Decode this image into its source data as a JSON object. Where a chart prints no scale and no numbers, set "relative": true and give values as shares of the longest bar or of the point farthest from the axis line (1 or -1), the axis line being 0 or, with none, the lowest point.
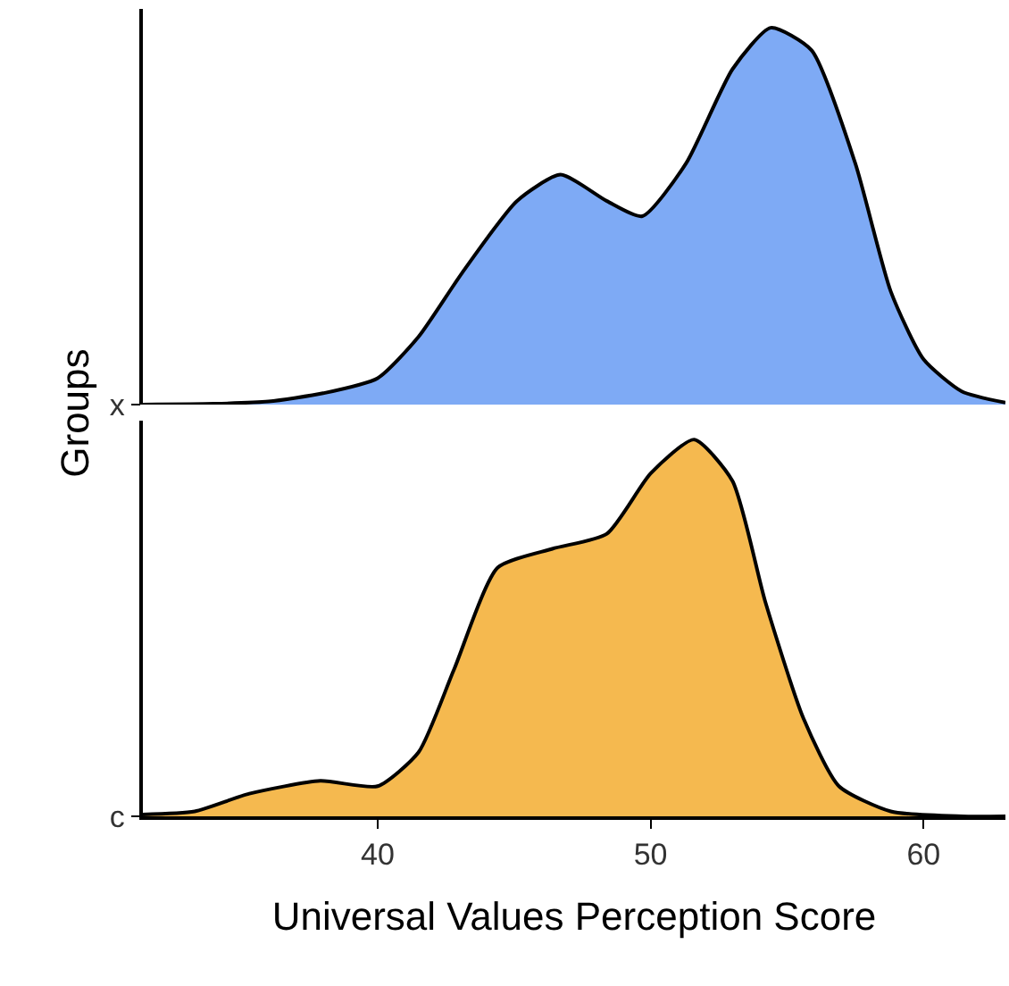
{
  "chart_data": [
    {
      "type": "area",
      "relative": true,
      "tick_labels": "y",
      "xlim": [
        31.4,
        63
      ],
      "x": [
        31.4,
        34,
        36,
        38,
        40,
        41.5,
        43.1,
        45.1,
        46.7,
        48.4,
        49.7,
        51.3,
        53,
        54.4,
        55.9,
        57.5,
        58.8,
        60,
        61.4,
        63
      ],
      "series": [
        {
          "name": "x",
          "color": "#7eaaf5",
          "values": [
            0,
            0.002,
            0.008,
            0.03,
            0.07,
            0.18,
            0.35,
            0.54,
            0.61,
            0.54,
            0.5,
            0.64,
            0.89,
            1,
            0.94,
            0.64,
            0.3,
            0.12,
            0.035,
            0.005
          ]
        }
      ]
    },
    {
      "type": "area",
      "relative": true,
      "xlim": [
        31.4,
        63
      ],
      "xticks": [
        40,
        50,
        60
      ],
      "xlabel": "Universal Values Perception Score",
      "ylabel": "Groups",
      "x": [
        31.4,
        33.3,
        35.3,
        37.9,
        40,
        41.5,
        42.8,
        44.4,
        46.4,
        48.4,
        50,
        51.6,
        53,
        54.2,
        55.6,
        56.9,
        58.8,
        61.4,
        63
      ],
      "series": [
        {
          "name": "c",
          "color": "#f5b94f",
          "values": [
            0.005,
            0.013,
            0.06,
            0.094,
            0.08,
            0.17,
            0.39,
            0.66,
            0.71,
            0.75,
            0.91,
            1,
            0.89,
            0.57,
            0.26,
            0.08,
            0.013,
            0,
            0
          ]
        }
      ]
    }
  ]
}
